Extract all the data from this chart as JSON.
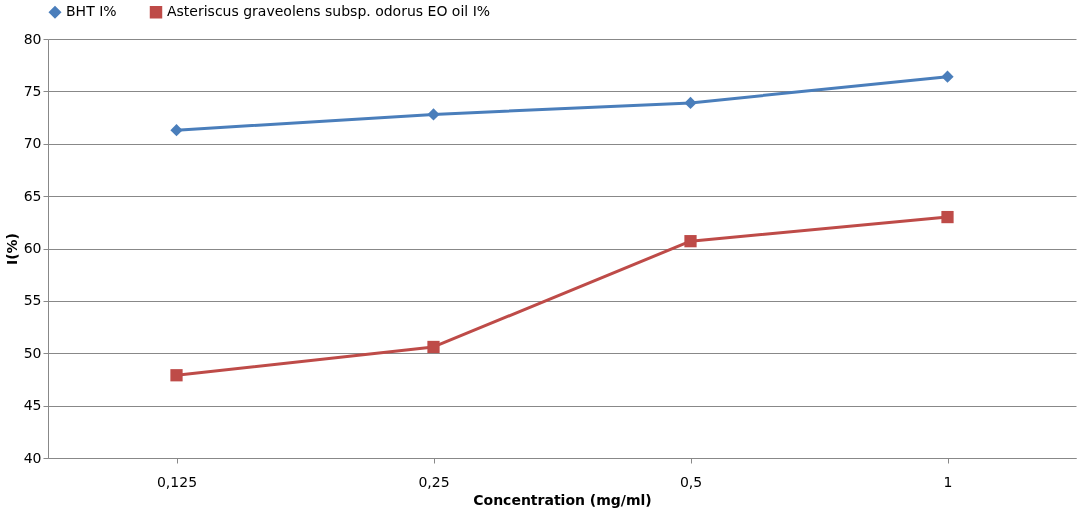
{
  "chart_data": {
    "type": "line",
    "xlabel": "Concentration (mg/ml)",
    "ylabel": "I(%)",
    "categories": [
      "0,125",
      "0,25",
      "0,5",
      "1"
    ],
    "series": [
      {
        "name": "BHT I%",
        "color": "#4a7ebb",
        "marker": "diamond",
        "values": [
          71.3,
          72.8,
          73.9,
          76.4
        ]
      },
      {
        "name": "Asteriscus graveolens subsp. odorus EO oil I%",
        "color": "#be4b48",
        "marker": "square",
        "values": [
          47.9,
          50.6,
          60.7,
          63.0
        ]
      }
    ],
    "ylim": [
      40,
      80
    ],
    "yticks": [
      40,
      45,
      50,
      55,
      60,
      65,
      70,
      75,
      80
    ],
    "grid": "y",
    "legend": "top",
    "line_style": "solid"
  }
}
